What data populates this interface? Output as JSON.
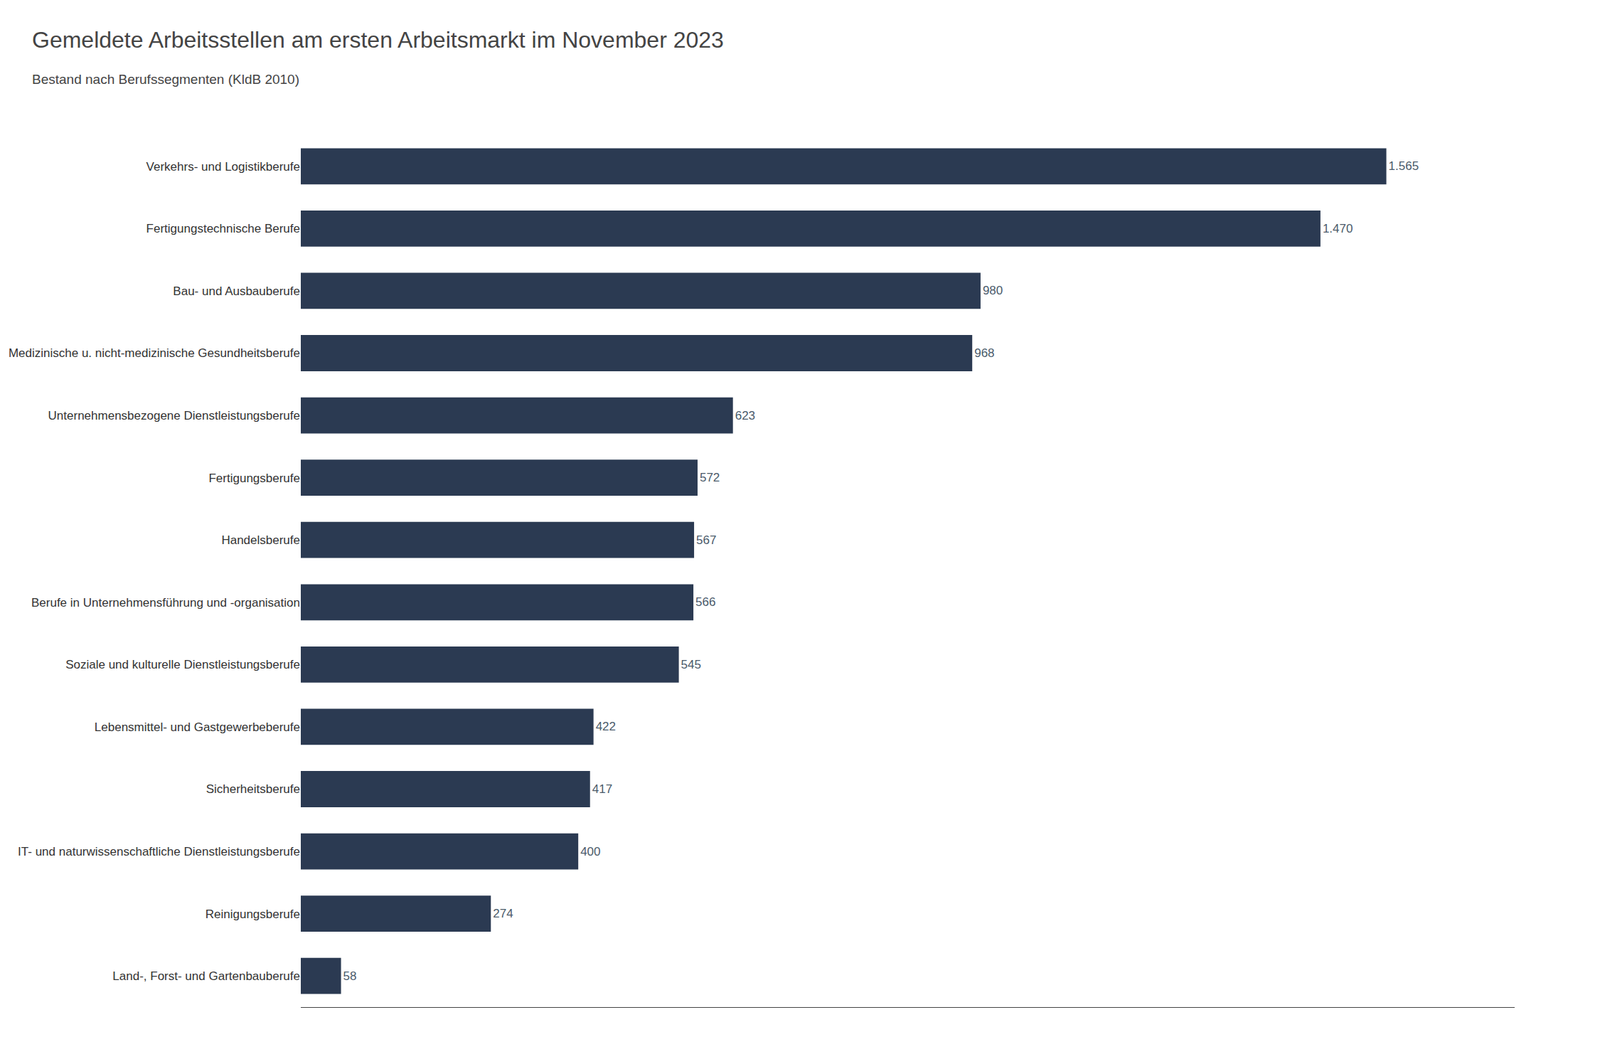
{
  "chart_data": {
    "type": "bar",
    "orientation": "horizontal",
    "title": "Gemeldete Arbeitsstellen am ersten Arbeitsmarkt im November 2023",
    "subtitle": "Bestand nach Berufssegmenten (KldB 2010)",
    "categories": [
      "Land-, Forst- und Gartenbauberufe",
      "Reinigungsberufe",
      "IT- und naturwissenschaftliche Dienstleistungsberufe",
      "Sicherheitsberufe",
      "Lebensmittel- und Gastgewerbeberufe",
      "Soziale und kulturelle Dienstleistungsberufe",
      "Berufe in Unternehmensführung und -organisation",
      "Handelsberufe",
      "Fertigungsberufe",
      "Unternehmensbezogene Dienstleistungsberufe",
      "Medizinische u. nicht-medizinische Gesundheitsberufe",
      "Bau- und Ausbauberufe",
      "Fertigungstechnische Berufe",
      "Verkehrs- und Logistikberufe"
    ],
    "values": [
      58,
      274,
      400,
      417,
      422,
      545,
      566,
      567,
      572,
      623,
      968,
      980,
      1470,
      1565
    ],
    "value_labels": [
      "58",
      "274",
      "400",
      "417",
      "422",
      "545",
      "566",
      "567",
      "572",
      "623",
      "968",
      "980",
      "1.470",
      "1.565"
    ],
    "color": "#2b3a52",
    "xlim": [
      0,
      1750
    ],
    "data_labels": true,
    "tick_labels": "y",
    "grid": false
  }
}
